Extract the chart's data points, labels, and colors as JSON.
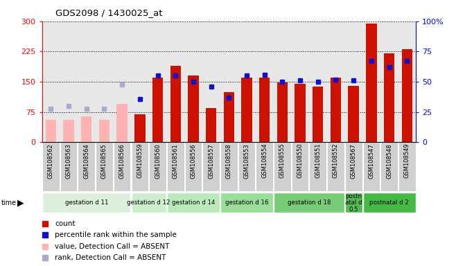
{
  "title": "GDS2098 / 1430025_at",
  "samples": [
    "GSM108562",
    "GSM108563",
    "GSM108564",
    "GSM108565",
    "GSM108566",
    "GSM108559",
    "GSM108560",
    "GSM108561",
    "GSM108556",
    "GSM108557",
    "GSM108558",
    "GSM108553",
    "GSM108554",
    "GSM108555",
    "GSM108550",
    "GSM108551",
    "GSM108552",
    "GSM108567",
    "GSM108547",
    "GSM108548",
    "GSM108549"
  ],
  "values": [
    55,
    55,
    65,
    55,
    95,
    70,
    160,
    190,
    165,
    85,
    125,
    160,
    160,
    148,
    145,
    138,
    160,
    140,
    295,
    220,
    230
  ],
  "absent": [
    true,
    true,
    true,
    true,
    true,
    false,
    false,
    false,
    false,
    false,
    false,
    false,
    false,
    false,
    false,
    false,
    false,
    false,
    false,
    false,
    false
  ],
  "ranks": [
    28,
    30,
    28,
    28,
    48,
    36,
    55,
    55,
    50,
    46,
    37,
    55,
    56,
    50,
    51,
    50,
    52,
    51,
    67,
    62,
    67
  ],
  "rank_absent": [
    true,
    true,
    true,
    true,
    true,
    false,
    false,
    false,
    false,
    false,
    false,
    false,
    false,
    false,
    false,
    false,
    false,
    false,
    false,
    false,
    false
  ],
  "groups": [
    {
      "label": "gestation d 11",
      "start": 0,
      "end": 4,
      "color": "#ddf0dd"
    },
    {
      "label": "gestation d 12",
      "start": 5,
      "end": 6,
      "color": "#cceecc"
    },
    {
      "label": "gestation d 14",
      "start": 7,
      "end": 9,
      "color": "#bbebbb"
    },
    {
      "label": "gestation d 16",
      "start": 10,
      "end": 12,
      "color": "#99dd99"
    },
    {
      "label": "gestation d 18",
      "start": 13,
      "end": 16,
      "color": "#77cc77"
    },
    {
      "label": "postn\natal d\n0.5",
      "start": 17,
      "end": 17,
      "color": "#55bb55"
    },
    {
      "label": "postnatal d 2",
      "start": 18,
      "end": 20,
      "color": "#44bb44"
    }
  ],
  "ylim_left": [
    0,
    300
  ],
  "ylim_right": [
    0,
    100
  ],
  "yticks_left": [
    0,
    75,
    150,
    225,
    300
  ],
  "yticks_right": [
    0,
    25,
    50,
    75,
    100
  ],
  "bar_color_present": "#cc1100",
  "bar_color_absent": "#ffb3b3",
  "rank_color_present": "#1111cc",
  "rank_color_absent": "#aaaacc",
  "plot_bg": "#e8e8e8",
  "xtick_bg": "#d0d0d0"
}
